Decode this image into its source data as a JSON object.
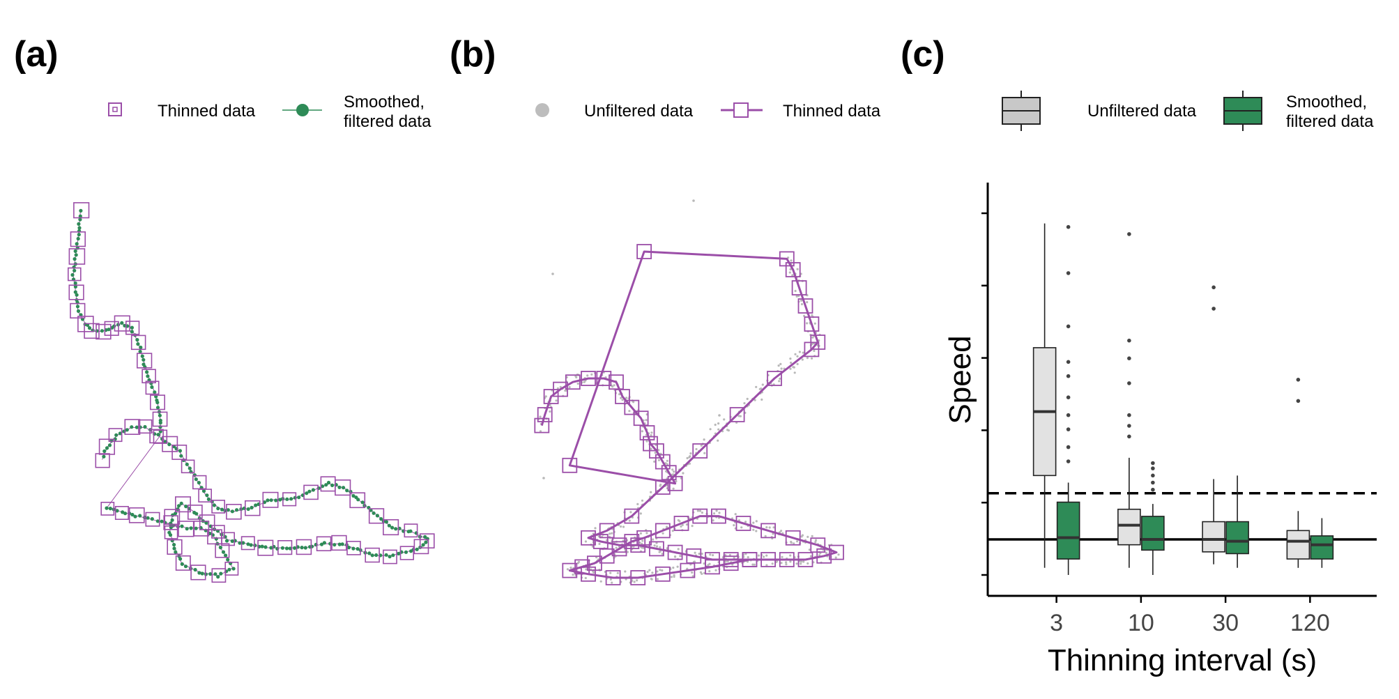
{
  "panels": [
    {
      "label": "(a)"
    },
    {
      "label": "(b)"
    },
    {
      "label": "(c)"
    }
  ],
  "colors": {
    "purple": "#9b4ea8",
    "green": "#2e8b57",
    "grey_point": "#b8b8b8",
    "box_unfiltered": "#e2e2e2",
    "box_smoothed": "#2e8b57"
  },
  "legend_a": [
    {
      "label": "Thinned data",
      "symbol": "open-square"
    },
    {
      "label_lines": [
        "Smoothed,",
        "filtered data"
      ],
      "symbol": "filled-circle-line"
    }
  ],
  "legend_b": [
    {
      "label": "Unfiltered data",
      "symbol": "grey-dot"
    },
    {
      "label": "Thinned data",
      "symbol": "open-square-line"
    }
  ],
  "legend_c": [
    {
      "label": "Unfiltered data",
      "symbol": "grey-box"
    },
    {
      "label_lines": [
        "Smoothed,",
        "filtered data"
      ],
      "symbol": "green-box"
    }
  ],
  "chart_data": [
    {
      "type": "scatter",
      "panel": "(a)",
      "title": "",
      "xlabel": "",
      "ylabel": "",
      "axes": "none",
      "series": [
        {
          "name": "Thinned data",
          "marker": "open-square"
        },
        {
          "name": "Smoothed, filtered data",
          "marker": "filled-circle"
        }
      ],
      "track": [
        [
          3,
          96
        ],
        [
          2,
          89
        ],
        [
          1,
          85
        ],
        [
          0,
          80
        ],
        [
          1,
          76
        ],
        [
          2,
          71
        ],
        [
          5,
          68
        ],
        [
          8,
          66
        ],
        [
          12,
          66
        ],
        [
          16,
          67
        ],
        [
          20,
          68
        ],
        [
          24,
          67
        ],
        [
          27,
          63
        ],
        [
          29,
          59
        ],
        [
          31,
          55
        ],
        [
          33,
          52
        ],
        [
          35,
          48
        ],
        [
          36,
          44
        ],
        [
          36,
          40
        ],
        [
          14,
          22
        ],
        [
          20,
          21
        ],
        [
          26,
          20
        ],
        [
          33,
          19
        ],
        [
          40,
          18
        ],
        [
          47,
          17
        ],
        [
          53,
          17
        ],
        [
          58,
          15
        ],
        [
          62,
          11
        ],
        [
          66,
          7
        ],
        [
          60,
          5
        ],
        [
          52,
          6
        ],
        [
          45,
          8
        ],
        [
          42,
          12
        ],
        [
          40,
          16
        ],
        [
          41,
          20
        ],
        [
          45,
          23
        ],
        [
          50,
          21
        ],
        [
          55,
          18
        ],
        [
          60,
          16
        ],
        [
          64,
          14
        ],
        [
          72,
          13
        ],
        [
          80,
          12
        ],
        [
          88,
          12
        ],
        [
          96,
          12
        ],
        [
          104,
          13
        ],
        [
          110,
          13
        ],
        [
          116,
          12
        ],
        [
          124,
          10
        ],
        [
          131,
          10
        ],
        [
          138,
          11
        ],
        [
          144,
          12
        ],
        [
          147,
          14
        ],
        [
          140,
          16
        ],
        [
          132,
          17
        ],
        [
          126,
          20
        ],
        [
          118,
          24
        ],
        [
          112,
          27
        ],
        [
          106,
          28
        ],
        [
          98,
          26
        ],
        [
          90,
          24
        ],
        [
          82,
          24
        ],
        [
          74,
          22
        ],
        [
          66,
          21
        ],
        [
          60,
          22
        ],
        [
          55,
          25
        ],
        [
          52,
          28
        ],
        [
          48,
          32
        ],
        [
          44,
          36
        ],
        [
          40,
          38
        ],
        [
          35,
          40
        ],
        [
          30,
          42
        ],
        [
          24,
          42
        ],
        [
          18,
          40
        ],
        [
          14,
          37
        ],
        [
          12,
          34
        ]
      ]
    },
    {
      "type": "scatter",
      "panel": "(b)",
      "title": "",
      "xlabel": "",
      "ylabel": "",
      "axes": "none",
      "series": [
        {
          "name": "Unfiltered data",
          "marker": "grey-dot"
        },
        {
          "name": "Thinned data",
          "marker": "open-square-line"
        }
      ],
      "track": [
        [
          5,
          47
        ],
        [
          6,
          50
        ],
        [
          8,
          55
        ],
        [
          11,
          57
        ],
        [
          15,
          59
        ],
        [
          20,
          60
        ],
        [
          25,
          60
        ],
        [
          29,
          59
        ],
        [
          31,
          55
        ],
        [
          34,
          52
        ],
        [
          37,
          49
        ],
        [
          39,
          45
        ],
        [
          40,
          42
        ],
        [
          42,
          40
        ],
        [
          44,
          37
        ],
        [
          46,
          34
        ],
        [
          48,
          31
        ],
        [
          14,
          36
        ],
        [
          38,
          95
        ],
        [
          84,
          93
        ],
        [
          86,
          90
        ],
        [
          88,
          85
        ],
        [
          90,
          80
        ],
        [
          92,
          75
        ],
        [
          94,
          70
        ],
        [
          92,
          68
        ],
        [
          80,
          60
        ],
        [
          68,
          50
        ],
        [
          56,
          40
        ],
        [
          44,
          30
        ],
        [
          34,
          22
        ],
        [
          26,
          18
        ],
        [
          20,
          16
        ],
        [
          24,
          15
        ],
        [
          30,
          14
        ],
        [
          36,
          14
        ],
        [
          42,
          13
        ],
        [
          48,
          12
        ],
        [
          54,
          11
        ],
        [
          60,
          10
        ],
        [
          66,
          10
        ],
        [
          72,
          10
        ],
        [
          78,
          10
        ],
        [
          84,
          10
        ],
        [
          90,
          10
        ],
        [
          96,
          11
        ],
        [
          100,
          12
        ],
        [
          94,
          14
        ],
        [
          86,
          16
        ],
        [
          78,
          18
        ],
        [
          70,
          20
        ],
        [
          62,
          22
        ],
        [
          56,
          22
        ],
        [
          50,
          20
        ],
        [
          44,
          18
        ],
        [
          38,
          16
        ],
        [
          34,
          15
        ],
        [
          30,
          13
        ],
        [
          26,
          11
        ],
        [
          22,
          9
        ],
        [
          18,
          8
        ],
        [
          14,
          7
        ],
        [
          20,
          6
        ],
        [
          28,
          5
        ],
        [
          36,
          5
        ],
        [
          44,
          6
        ],
        [
          52,
          7
        ],
        [
          60,
          8
        ],
        [
          66,
          9
        ],
        [
          72,
          10
        ]
      ]
    },
    {
      "type": "box",
      "panel": "(c)",
      "title": "",
      "xlabel": "Thinning interval (s)",
      "ylabel": "Speed",
      "categories": [
        "3",
        "10",
        "30",
        "120"
      ],
      "y_tick_count": 6,
      "ylim": [
        0,
        10.5
      ],
      "series": [
        {
          "name": "Unfiltered data",
          "boxes": [
            {
              "low": 0.2,
              "q1": 2.8,
              "median": 4.6,
              "q3": 6.4,
              "high": 9.9,
              "outliers": []
            },
            {
              "low": 0.2,
              "q1": 0.85,
              "median": 1.4,
              "q3": 1.85,
              "high": 3.3,
              "outliers": [
                3.9,
                4.2,
                4.5,
                5.4,
                6.1,
                6.6,
                9.6
              ]
            },
            {
              "low": 0.3,
              "q1": 0.65,
              "median": 1.0,
              "q3": 1.5,
              "high": 2.7,
              "outliers": [
                7.5,
                8.1
              ]
            },
            {
              "low": 0.2,
              "q1": 0.45,
              "median": 0.95,
              "q3": 1.25,
              "high": 1.8,
              "outliers": [
                4.9,
                5.5
              ]
            }
          ]
        },
        {
          "name": "Smoothed, filtered data",
          "boxes": [
            {
              "low": 0.0,
              "q1": 0.45,
              "median": 1.05,
              "q3": 2.05,
              "high": 2.6,
              "outliers": [
                3.2,
                3.6,
                4.1,
                4.5,
                5.0,
                5.6,
                6.0,
                7.0,
                8.5,
                9.8
              ]
            },
            {
              "low": 0.0,
              "q1": 0.7,
              "median": 1.0,
              "q3": 1.65,
              "high": 2.0,
              "outliers": [
                2.4,
                2.6,
                2.8,
                3.0,
                3.15
              ]
            },
            {
              "low": 0.2,
              "q1": 0.6,
              "median": 0.95,
              "q3": 1.5,
              "high": 2.8,
              "outliers": []
            },
            {
              "low": 0.2,
              "q1": 0.45,
              "median": 0.85,
              "q3": 1.1,
              "high": 1.6,
              "outliers": []
            }
          ]
        }
      ],
      "reference_lines": [
        {
          "style": "solid",
          "y": 1.0
        },
        {
          "style": "dashed",
          "y": 2.3
        }
      ],
      "grid": false,
      "legend_position": "top"
    }
  ]
}
